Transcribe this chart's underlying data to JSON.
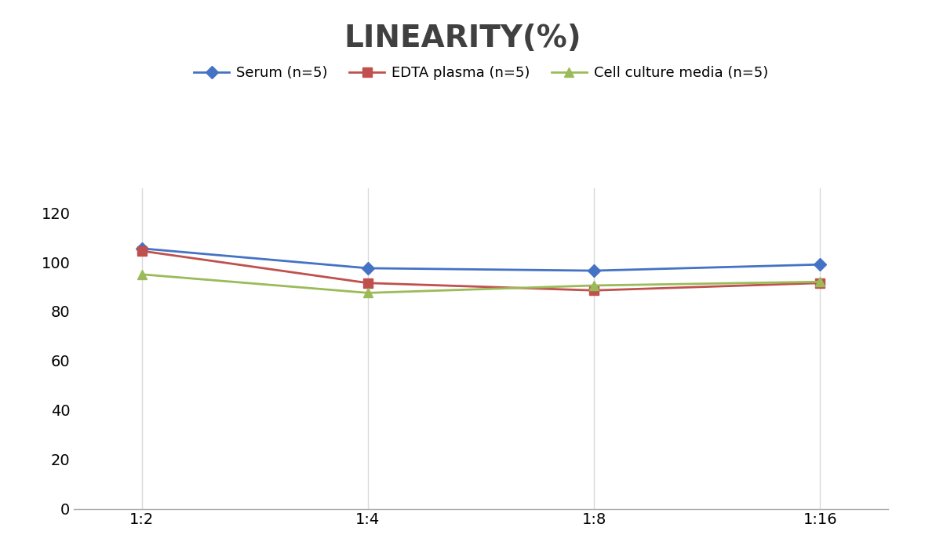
{
  "title": "LINEARITY(%)",
  "title_fontsize": 28,
  "title_fontweight": "bold",
  "title_color": "#404040",
  "x_labels": [
    "1:2",
    "1:4",
    "1:8",
    "1:16"
  ],
  "x_positions": [
    0,
    1,
    2,
    3
  ],
  "series": [
    {
      "label": "Serum (n=5)",
      "color": "#4472C4",
      "marker": "D",
      "markersize": 8,
      "values": [
        105.5,
        97.5,
        96.5,
        99.0
      ]
    },
    {
      "label": "EDTA plasma (n=5)",
      "color": "#C0504D",
      "marker": "s",
      "markersize": 8,
      "values": [
        104.5,
        91.5,
        88.5,
        91.5
      ]
    },
    {
      "label": "Cell culture media (n=5)",
      "color": "#9BBB59",
      "marker": "^",
      "markersize": 9,
      "values": [
        95.0,
        87.5,
        90.5,
        92.0
      ]
    }
  ],
  "ylim": [
    0,
    130
  ],
  "yticks": [
    0,
    20,
    40,
    60,
    80,
    100,
    120
  ],
  "grid_color": "#D9D9D9",
  "background_color": "#FFFFFF",
  "legend_fontsize": 13,
  "tick_fontsize": 14,
  "linewidth": 2.0
}
